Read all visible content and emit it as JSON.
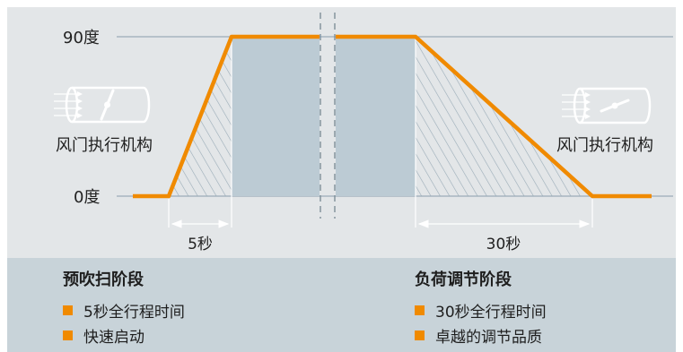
{
  "colors": {
    "top_band": "#e3e6e8",
    "bottom_band": "#c8d3d9",
    "phase_fill": "#bccbd4",
    "hatch": "#9aabb7",
    "orange": "#f08a00",
    "grid": "#9aabb7",
    "divider": "#7f8f99",
    "text": "#222222"
  },
  "axis": {
    "top_label": "90度",
    "bottom_label": "0度"
  },
  "durations": {
    "left": "5秒",
    "right": "30秒"
  },
  "actuator_left": {
    "label": "风门执行机构",
    "icon": "damper-open-icon"
  },
  "actuator_right": {
    "label": "风门执行机构",
    "icon": "damper-closed-icon"
  },
  "legend": {
    "left": {
      "title": "预吹扫阶段",
      "items": [
        "5秒全行程时间",
        "快速启动"
      ]
    },
    "right": {
      "title": "负荷调节阶段",
      "items": [
        "30秒全行程时间",
        "卓越的调节品质"
      ]
    }
  }
}
